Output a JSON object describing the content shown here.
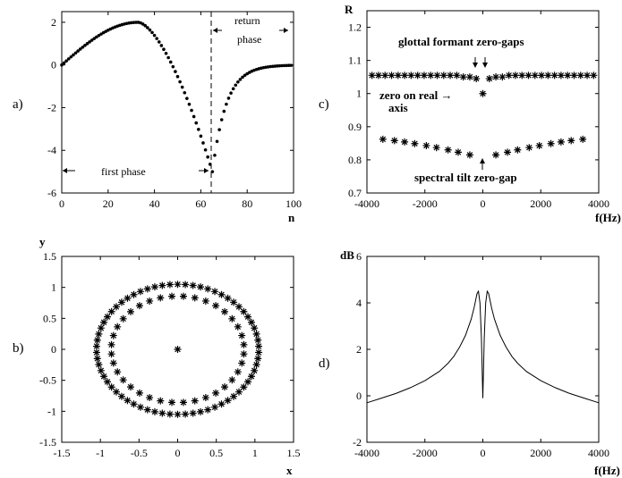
{
  "chart_data": [
    {
      "panel": "a)",
      "type": "scatter",
      "xlabel": "n",
      "ylabel": "",
      "xlim": [
        0,
        100
      ],
      "ylim": [
        -6,
        2.5
      ],
      "xticks": [
        "0",
        "20",
        "40",
        "60",
        "80",
        "100"
      ],
      "yticks": [
        "2",
        "0",
        "-2",
        "-4",
        "-6"
      ],
      "xtick_values": [
        0,
        20,
        40,
        60,
        80,
        100
      ],
      "ytick_values": [
        2,
        0,
        -2,
        -4,
        -6
      ],
      "grid": false,
      "annotations": {
        "return_line1": "return",
        "return_line2": "phase",
        "first": "first phase"
      },
      "marker_line_x": 65,
      "samples": 100,
      "curve_description": "glottal flow derivative: rises to 2 at n=33, falls to -5 at n=65, returns to 0 by n=100"
    },
    {
      "panel": "c)",
      "type": "scatter",
      "xlabel": "f(Hz)",
      "ylabel": "R",
      "xlim": [
        -4000,
        4000
      ],
      "ylim": [
        0.7,
        1.25
      ],
      "xticks": [
        "-4000",
        "-2000",
        "0",
        "2000",
        "4000"
      ],
      "yticks": [
        "1.2",
        "1.1",
        "1",
        "0.9",
        "0.8",
        "0.7"
      ],
      "xtick_values": [
        -4000,
        -2000,
        0,
        2000,
        4000
      ],
      "ytick_values": [
        1.2,
        1.1,
        1.0,
        0.9,
        0.8,
        0.7
      ],
      "grid": false,
      "series": [
        {
          "role": "outer",
          "x": [
            -3825,
            -3600,
            -3375,
            -3150,
            -2925,
            -2700,
            -2475,
            -2250,
            -2025,
            -1800,
            -1575,
            -1350,
            -1125,
            -900,
            -675,
            -450,
            -225,
            225,
            450,
            675,
            900,
            1125,
            1350,
            1575,
            1800,
            2025,
            2250,
            2475,
            2700,
            2925,
            3150,
            3375,
            3600,
            3825
          ],
          "y": [
            1.055,
            1.055,
            1.055,
            1.055,
            1.055,
            1.055,
            1.055,
            1.055,
            1.055,
            1.055,
            1.055,
            1.055,
            1.055,
            1.055,
            1.05,
            1.05,
            1.045,
            1.045,
            1.05,
            1.05,
            1.055,
            1.055,
            1.055,
            1.055,
            1.055,
            1.055,
            1.055,
            1.055,
            1.055,
            1.055,
            1.055,
            1.055,
            1.055,
            1.055
          ]
        },
        {
          "role": "inner",
          "x": [
            -3450,
            -3050,
            -2700,
            -2350,
            -1950,
            -1600,
            -1200,
            -850,
            -450,
            450,
            850,
            1200,
            1600,
            1950,
            2350,
            2700,
            3050,
            3450
          ],
          "y": [
            0.862,
            0.858,
            0.854,
            0.849,
            0.843,
            0.837,
            0.83,
            0.823,
            0.815,
            0.815,
            0.823,
            0.83,
            0.837,
            0.843,
            0.849,
            0.854,
            0.858,
            0.862
          ]
        },
        {
          "role": "real-axis zero",
          "x": [
            0
          ],
          "y": [
            1.0
          ]
        }
      ],
      "annotations": {
        "glottal": "glottal formant zero-gaps",
        "zero1": "zero on real →",
        "zero2": "axis",
        "tilt": "spectral tilt zero-gap"
      }
    },
    {
      "panel": "b)",
      "type": "scatter",
      "xlabel": "x",
      "ylabel": "y",
      "xlim": [
        -1.5,
        1.5
      ],
      "ylim": [
        -1.5,
        1.5
      ],
      "xticks": [
        "-1.5",
        "-1",
        "-0.5",
        "0",
        "0.5",
        "1",
        "1.5"
      ],
      "yticks": [
        "1.5",
        "1",
        "0.5",
        "0",
        "-0.5",
        "-1",
        "-1.5"
      ],
      "xtick_values": [
        -1.5,
        -1,
        -0.5,
        0,
        0.5,
        1,
        1.5
      ],
      "ytick_values": [
        1.5,
        1,
        0.5,
        0,
        -0.5,
        -1,
        -1.5
      ],
      "grid": false,
      "series": [
        {
          "role": "outer ring",
          "radius": 1.05,
          "count": 66
        },
        {
          "role": "inner ring",
          "radius": 0.86,
          "count": 36
        },
        {
          "role": "center",
          "x": [
            0
          ],
          "y": [
            0
          ]
        }
      ]
    },
    {
      "panel": "d)",
      "type": "line",
      "xlabel": "f(Hz)",
      "ylabel": "dB",
      "xlim": [
        -4000,
        4000
      ],
      "ylim": [
        -2,
        6
      ],
      "xticks": [
        "-4000",
        "-2000",
        "0",
        "2000",
        "4000"
      ],
      "yticks": [
        "6",
        "4",
        "2",
        "0",
        "-2"
      ],
      "xtick_values": [
        -4000,
        -2000,
        0,
        2000,
        4000
      ],
      "ytick_values": [
        6,
        4,
        2,
        0,
        -2
      ],
      "grid": false,
      "x": [
        -4000,
        -3500,
        -3000,
        -2500,
        -2000,
        -1500,
        -1200,
        -1000,
        -800,
        -600,
        -400,
        -300,
        -200,
        -150,
        -100,
        -50,
        0,
        50,
        100,
        150,
        200,
        300,
        400,
        600,
        800,
        1000,
        1200,
        1500,
        2000,
        2500,
        3000,
        3500,
        4000
      ],
      "y": [
        -0.3,
        -0.1,
        0.1,
        0.35,
        0.65,
        1.05,
        1.4,
        1.7,
        2.1,
        2.6,
        3.3,
        3.8,
        4.4,
        4.5,
        4.0,
        2.5,
        -0.1,
        2.5,
        4.0,
        4.5,
        4.4,
        3.8,
        3.3,
        2.6,
        2.1,
        1.7,
        1.4,
        1.05,
        0.65,
        0.35,
        0.1,
        -0.1,
        -0.3
      ]
    }
  ]
}
